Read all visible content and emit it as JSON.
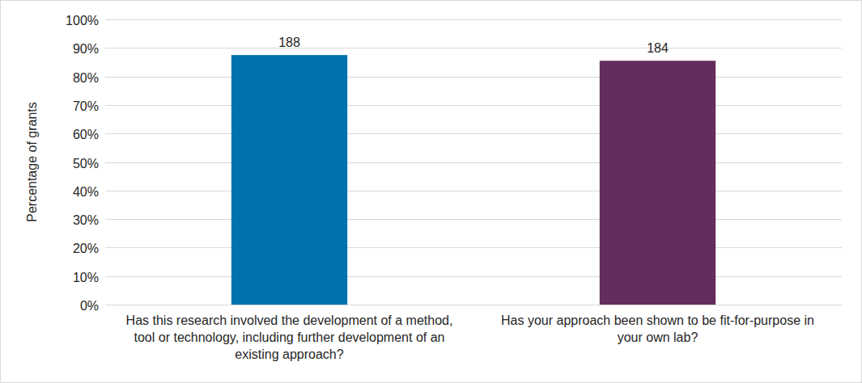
{
  "chart_data": {
    "type": "bar",
    "ylabel": "Percentage of grants",
    "categories": [
      "Has this research involved the development of a method, tool or technology, including further development of an existing approach?",
      "Has your approach been shown to be fit-for-purpose in your own lab?"
    ],
    "values": [
      87.5,
      85.5
    ],
    "counts": [
      188,
      184
    ],
    "colors": [
      "#0073ae",
      "#632d5c"
    ],
    "ylim": [
      0,
      100
    ],
    "yticks": [
      {
        "value": 0,
        "label": "0%"
      },
      {
        "value": 10,
        "label": "10%"
      },
      {
        "value": 20,
        "label": "20%"
      },
      {
        "value": 30,
        "label": "30%"
      },
      {
        "value": 40,
        "label": "40%"
      },
      {
        "value": 50,
        "label": "50%"
      },
      {
        "value": 60,
        "label": "60%"
      },
      {
        "value": 70,
        "label": "70%"
      },
      {
        "value": 80,
        "label": "80%"
      },
      {
        "value": 90,
        "label": "90%"
      },
      {
        "value": 100,
        "label": "100%"
      }
    ],
    "grid": true
  }
}
